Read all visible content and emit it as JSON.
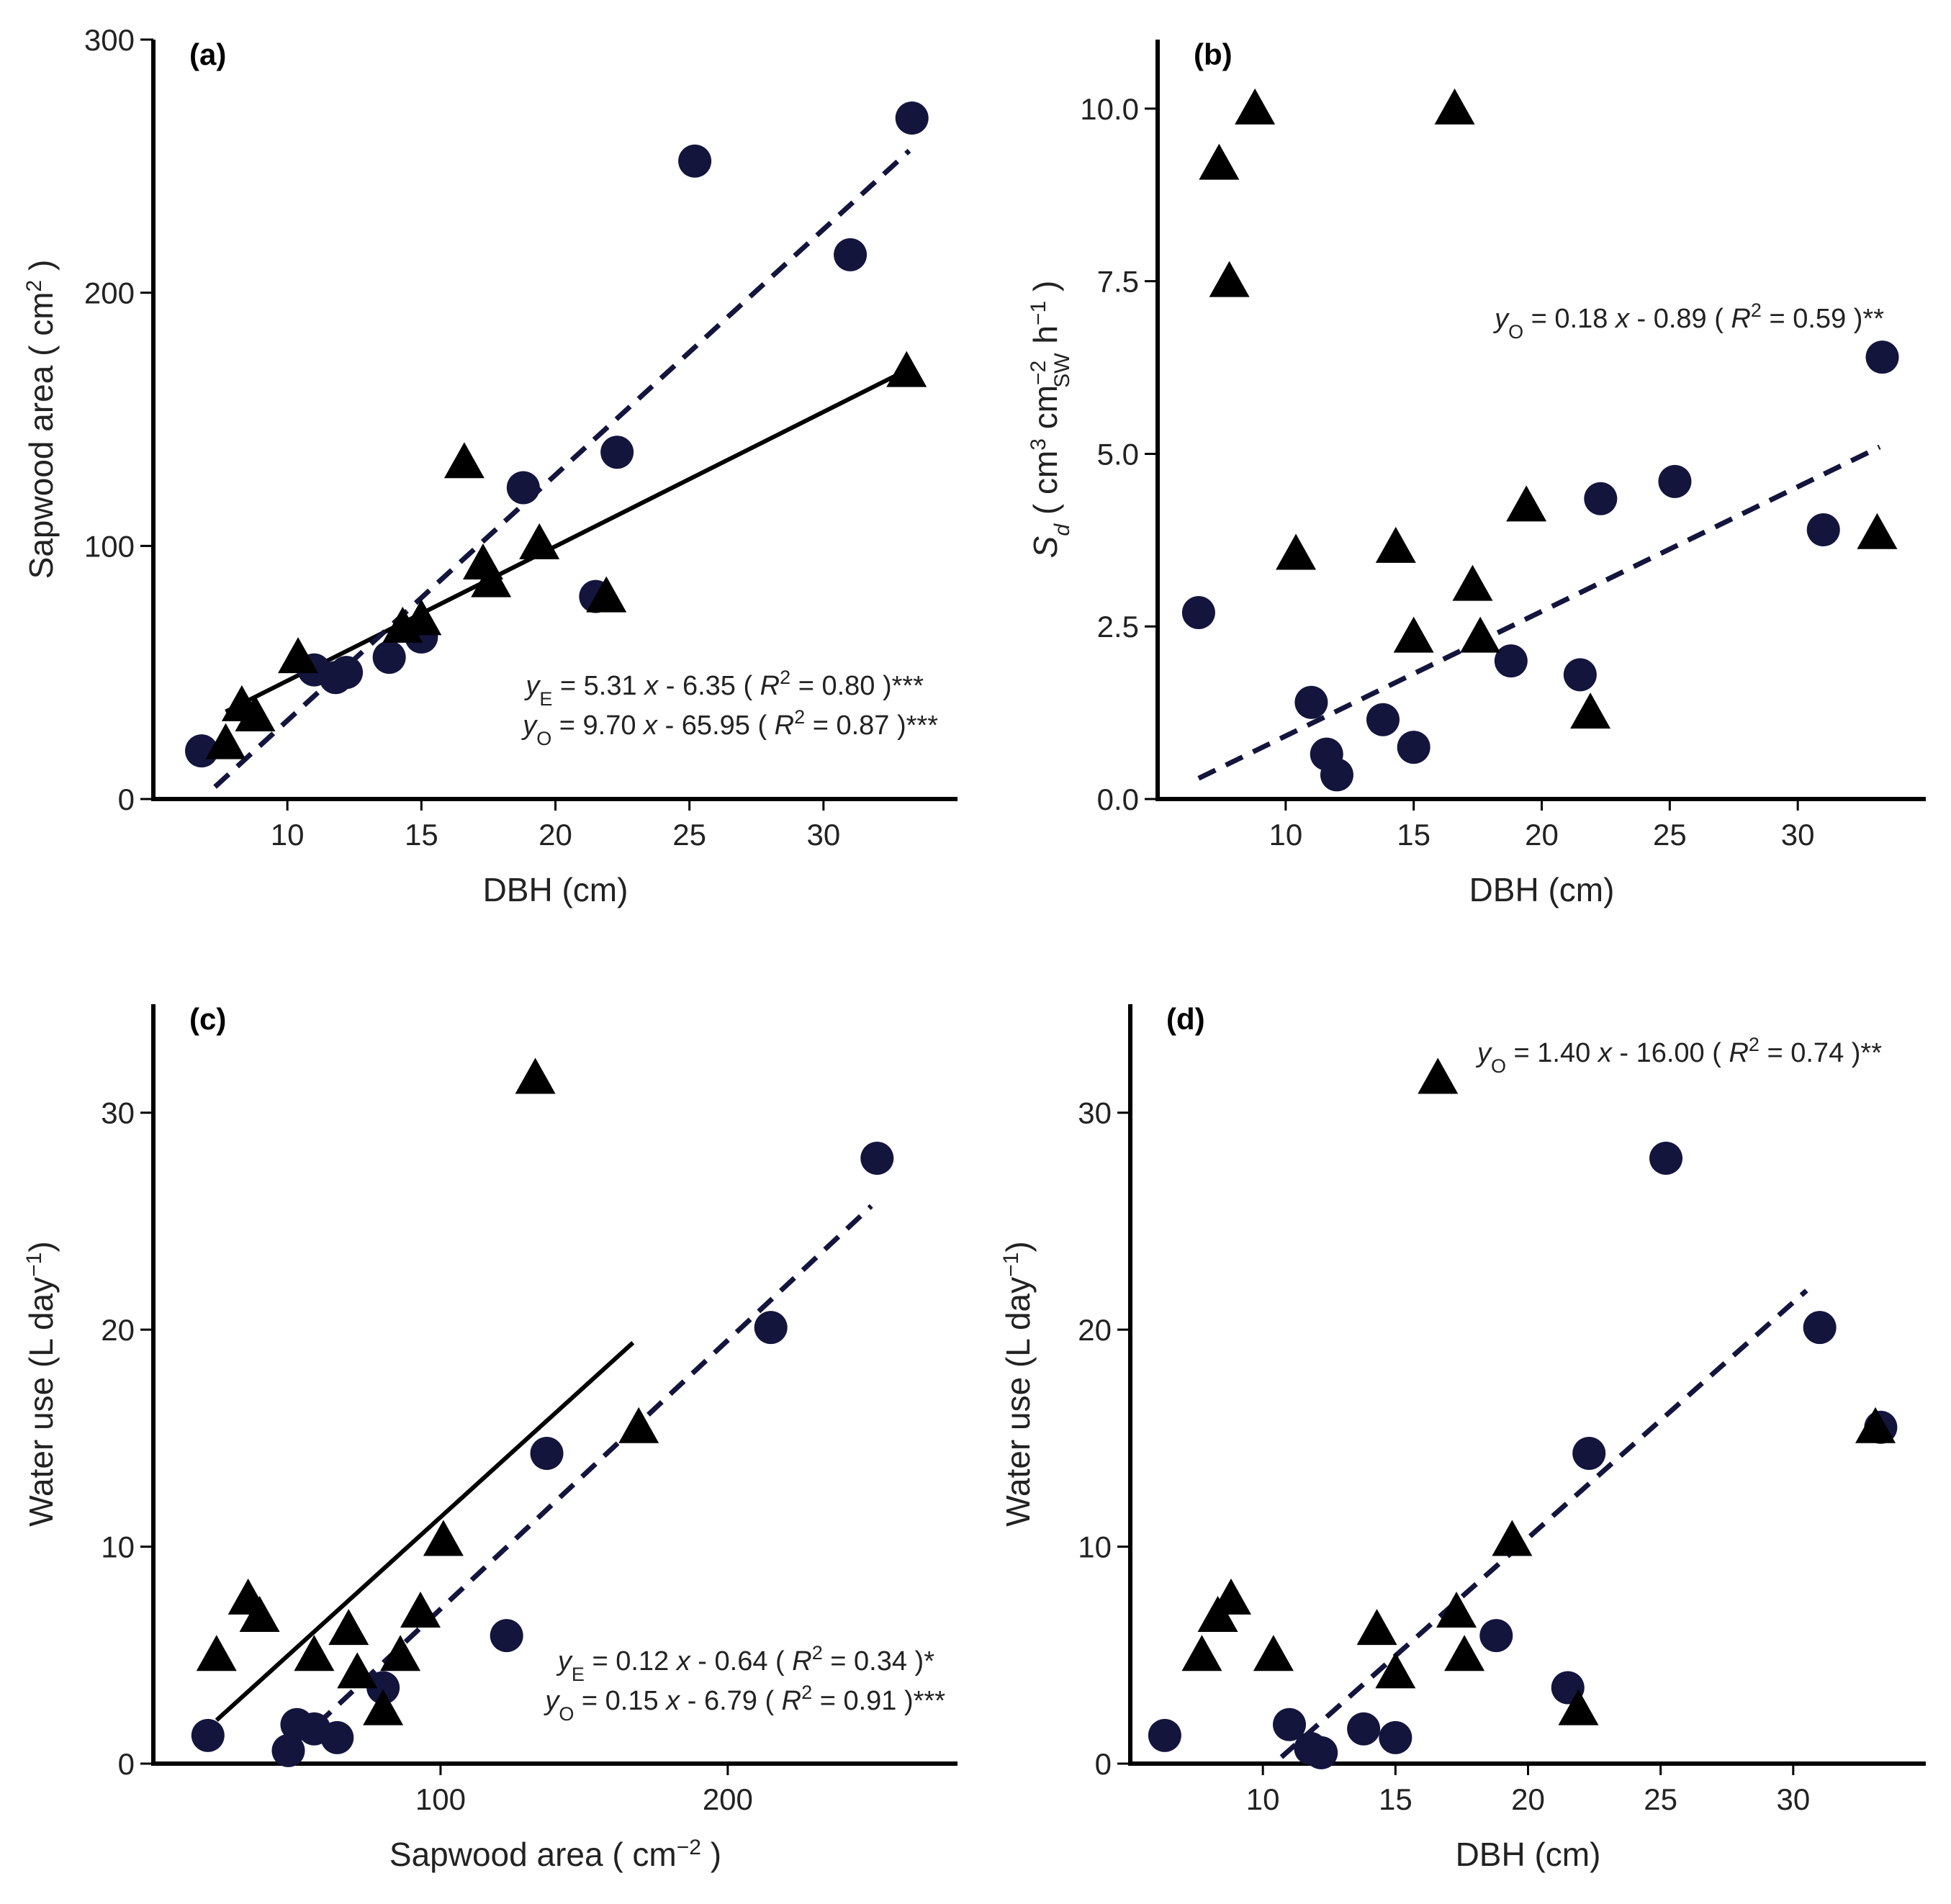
{
  "colors": {
    "circle": "#14153d",
    "triangle": "#000000"
  },
  "chart_data": [
    {
      "id": "a",
      "type": "scatter",
      "panel_label": "(a)",
      "xlabel": "DBH (cm)",
      "ylabel": {
        "main": "Sapwood area ( cm",
        "sup": "2",
        "end": " )"
      },
      "xlim": [
        5,
        35
      ],
      "ylim": [
        0,
        300
      ],
      "xticks": [
        10,
        15,
        20,
        25,
        30
      ],
      "yticks": [
        0,
        100,
        200,
        300
      ],
      "circles": [
        [
          6.8,
          19
        ],
        [
          11,
          51
        ],
        [
          11.8,
          48
        ],
        [
          12.2,
          50
        ],
        [
          13.8,
          56
        ],
        [
          15,
          64
        ],
        [
          18.8,
          123
        ],
        [
          21.5,
          80
        ],
        [
          22.3,
          137
        ],
        [
          25.2,
          252
        ],
        [
          31,
          215
        ],
        [
          33.3,
          269
        ]
      ],
      "triangles": [
        [
          7.7,
          22
        ],
        [
          8.3,
          37
        ],
        [
          8.8,
          33
        ],
        [
          10.4,
          56
        ],
        [
          14.3,
          68
        ],
        [
          15,
          71
        ],
        [
          16.6,
          133
        ],
        [
          17.3,
          93
        ],
        [
          17.6,
          86
        ],
        [
          19.4,
          101
        ],
        [
          21.9,
          80
        ],
        [
          33.1,
          169
        ]
      ],
      "lines": [
        {
          "style": "solid",
          "x": [
            7.7,
            33.1
          ],
          "y": [
            34.5,
            169.4
          ]
        },
        {
          "style": "dashed",
          "x": [
            7.3,
            33.2
          ],
          "y": [
            4.8,
            256.1
          ]
        }
      ],
      "equations": [
        {
          "var": "y",
          "sub": "E",
          "text1": " = 5.31 ",
          "xvar": "x",
          "text2": " - 6.35 ( ",
          "rvar": "R",
          "rsup": "2",
          "text3": " = 0.80 )***"
        },
        {
          "var": "y",
          "sub": "O",
          "text1": " = 9.70 ",
          "xvar": "x",
          "text2": " - 65.95 ( ",
          "rvar": "R",
          "rsup": "2",
          "text3": " = 0.87 )***"
        }
      ]
    },
    {
      "id": "b",
      "type": "scatter",
      "panel_label": "(b)",
      "xlabel": "DBH (cm)",
      "ylabel": {
        "s": "S",
        "sub": "d",
        "mid": " ( cm",
        "sup1": "3",
        "cm": " cm",
        "sup2": "−2",
        "sub2": "SW",
        "h": " h",
        "sup3": "−1",
        "end": " )"
      },
      "xlim": [
        5,
        35
      ],
      "ylim": [
        0,
        11
      ],
      "xticks": [
        10,
        15,
        20,
        25,
        30
      ],
      "yticks": [
        0,
        2.5,
        5,
        7.5,
        10
      ],
      "ytick_labels": [
        "0.0",
        "2.5",
        "5.0",
        "7.5",
        "10.0"
      ],
      "circles": [
        [
          6.6,
          2.7
        ],
        [
          11,
          1.4
        ],
        [
          11.6,
          0.65
        ],
        [
          12,
          0.35
        ],
        [
          13.8,
          1.15
        ],
        [
          15,
          0.75
        ],
        [
          18.8,
          2.0
        ],
        [
          21.5,
          1.8
        ],
        [
          22.3,
          4.35
        ],
        [
          25.2,
          4.6
        ],
        [
          31,
          3.9
        ],
        [
          33.3,
          6.4
        ]
      ],
      "triangles": [
        [
          7.4,
          9.2
        ],
        [
          7.8,
          7.5
        ],
        [
          8.8,
          10.0
        ],
        [
          10.4,
          3.55
        ],
        [
          14.3,
          3.65
        ],
        [
          15,
          2.35
        ],
        [
          16.6,
          10.0
        ],
        [
          17.3,
          3.1
        ],
        [
          17.6,
          2.35
        ],
        [
          19.4,
          4.25
        ],
        [
          21.9,
          1.25
        ],
        [
          33.1,
          3.85
        ]
      ],
      "lines": [
        {
          "style": "dashed",
          "x": [
            6.6,
            33.2
          ],
          "y": [
            0.3,
            5.1
          ]
        }
      ],
      "equations": [
        {
          "var": "y",
          "sub": "O",
          "text1": " = 0.18 ",
          "xvar": "x",
          "text2": " - 0.89 ( ",
          "rvar": "R",
          "rsup": "2",
          "text3": " = 0.59 )**"
        }
      ]
    },
    {
      "id": "c",
      "type": "scatter",
      "panel_label": "(c)",
      "xlabel": {
        "main": "Sapwood area ( cm",
        "sup": "−2",
        "end": " )"
      },
      "ylabel": {
        "main": "Water use (L day",
        "sup": "−1",
        "end": ")"
      },
      "xlim": [
        0,
        280
      ],
      "ylim": [
        0,
        35
      ],
      "xticks": [
        100,
        200
      ],
      "yticks": [
        0,
        10,
        20,
        30
      ],
      "circles": [
        [
          19,
          1.3
        ],
        [
          47,
          0.6
        ],
        [
          50,
          1.8
        ],
        [
          56,
          1.6
        ],
        [
          64,
          1.2
        ],
        [
          80,
          3.5
        ],
        [
          123,
          5.9
        ],
        [
          137,
          14.3
        ],
        [
          215,
          20.1
        ],
        [
          252,
          27.9
        ]
      ],
      "triangles": [
        [
          22,
          5
        ],
        [
          33,
          7.6
        ],
        [
          37,
          6.8
        ],
        [
          56,
          5
        ],
        [
          68,
          6.2
        ],
        [
          71,
          4.2
        ],
        [
          80,
          2.5
        ],
        [
          86,
          5
        ],
        [
          93,
          7
        ],
        [
          101,
          10.3
        ],
        [
          133,
          31.6
        ],
        [
          169,
          15.5
        ]
      ],
      "lines": [
        {
          "style": "solid",
          "x": [
            22,
            167
          ],
          "y": [
            2.0,
            19.4
          ]
        },
        {
          "style": "dashed",
          "x": [
            57,
            250
          ],
          "y": [
            1.8,
            25.7
          ]
        }
      ],
      "equations": [
        {
          "var": "y",
          "sub": "E",
          "text1": " = 0.12 ",
          "xvar": "x",
          "text2": " - 0.64 ( ",
          "rvar": "R",
          "rsup": "2",
          "text3": " = 0.34 )*"
        },
        {
          "var": "y",
          "sub": "O",
          "text1": " = 0.15 ",
          "xvar": "x",
          "text2": " - 6.79 ( ",
          "rvar": "R",
          "rsup": "2",
          "text3": " = 0.91 )***"
        }
      ]
    },
    {
      "id": "d",
      "type": "scatter",
      "panel_label": "(d)",
      "xlabel": "DBH (cm)",
      "ylabel": {
        "main": "Water use (L day",
        "sup": "−1",
        "end": ")"
      },
      "xlim": [
        5,
        35
      ],
      "ylim": [
        0,
        35
      ],
      "xticks": [
        10,
        15,
        20,
        25,
        30
      ],
      "yticks": [
        0,
        10,
        20,
        30
      ],
      "circles": [
        [
          6.3,
          1.3
        ],
        [
          11,
          1.8
        ],
        [
          11.8,
          0.7
        ],
        [
          12.2,
          0.5
        ],
        [
          13.8,
          1.6
        ],
        [
          15,
          1.2
        ],
        [
          18.8,
          5.9
        ],
        [
          21.5,
          3.5
        ],
        [
          22.3,
          14.3
        ],
        [
          25.2,
          27.9
        ],
        [
          31,
          20.1
        ],
        [
          33.3,
          15.5
        ]
      ],
      "triangles": [
        [
          7.7,
          5
        ],
        [
          8.3,
          6.8
        ],
        [
          8.8,
          7.6
        ],
        [
          10.4,
          5
        ],
        [
          14.3,
          6.2
        ],
        [
          15,
          4.2
        ],
        [
          16.6,
          31.6
        ],
        [
          17.3,
          7
        ],
        [
          17.6,
          5
        ],
        [
          19.4,
          10.3
        ],
        [
          21.9,
          2.5
        ],
        [
          33.1,
          15.5
        ]
      ],
      "lines": [
        {
          "style": "dashed",
          "x": [
            10.7,
            30.5
          ],
          "y": [
            0.3,
            21.8
          ]
        }
      ],
      "equations": [
        {
          "var": "y",
          "sub": "O",
          "text1": " = 1.40 ",
          "xvar": "x",
          "text2": " - 16.00 ( ",
          "rvar": "R",
          "rsup": "2",
          "text3": " = 0.74 )**"
        }
      ]
    }
  ]
}
